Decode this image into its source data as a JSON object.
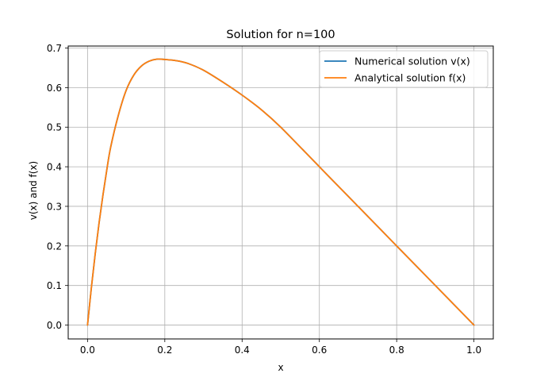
{
  "chart_data": {
    "type": "line",
    "title": "Solution for n=100",
    "xlabel": "x",
    "ylabel": "v(x) and f(x)",
    "xlim": [
      -0.05,
      1.05
    ],
    "ylim": [
      -0.035,
      0.705
    ],
    "x_ticks": [
      0.0,
      0.2,
      0.4,
      0.6,
      0.8,
      1.0
    ],
    "x_tick_labels": [
      "0.0",
      "0.2",
      "0.4",
      "0.6",
      "0.8",
      "1.0"
    ],
    "y_ticks": [
      0.0,
      0.1,
      0.2,
      0.3,
      0.4,
      0.5,
      0.6,
      0.7
    ],
    "y_tick_labels": [
      "0.0",
      "0.1",
      "0.2",
      "0.3",
      "0.4",
      "0.5",
      "0.6",
      "0.7"
    ],
    "grid": true,
    "legend_position": "top-right",
    "x": [
      0.0,
      0.01,
      0.02,
      0.03,
      0.04,
      0.05,
      0.06,
      0.08,
      0.1,
      0.12,
      0.14,
      0.16,
      0.18,
      0.2,
      0.23,
      0.26,
      0.3,
      0.35,
      0.4,
      0.45,
      0.5,
      0.6,
      0.7,
      0.8,
      0.9,
      1.0
    ],
    "series": [
      {
        "name": "Numerical solution v(x)",
        "color": "#1f77b4",
        "values": [
          0.0,
          0.095,
          0.181,
          0.259,
          0.329,
          0.393,
          0.45,
          0.531,
          0.593,
          0.632,
          0.655,
          0.667,
          0.672,
          0.671,
          0.668,
          0.661,
          0.644,
          0.614,
          0.581,
          0.544,
          0.5,
          0.4,
          0.3,
          0.2,
          0.1,
          0.0
        ]
      },
      {
        "name": "Analytical solution f(x)",
        "color": "#ff7f0e",
        "values": [
          0.0,
          0.095,
          0.181,
          0.259,
          0.329,
          0.393,
          0.45,
          0.531,
          0.593,
          0.632,
          0.655,
          0.667,
          0.672,
          0.671,
          0.668,
          0.661,
          0.644,
          0.614,
          0.581,
          0.544,
          0.5,
          0.4,
          0.3,
          0.2,
          0.1,
          0.0
        ]
      }
    ]
  }
}
